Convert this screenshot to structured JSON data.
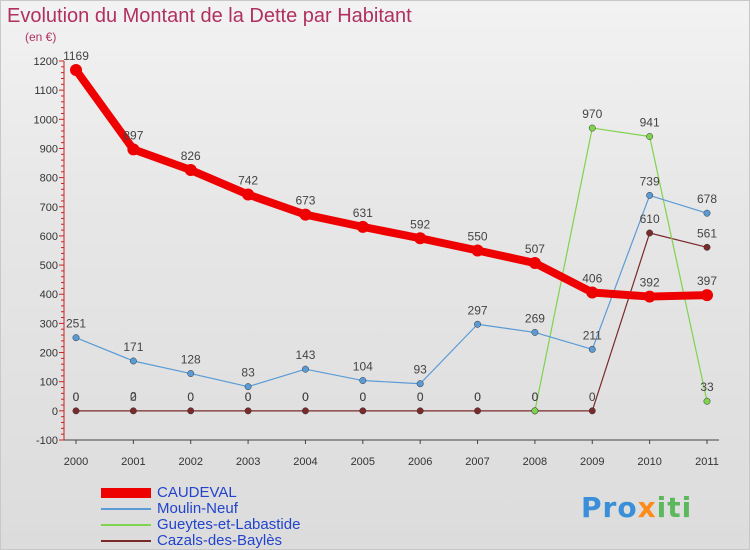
{
  "title": "Evolution du Montant de la Dette par Habitant",
  "unit": "(en €)",
  "brand": {
    "part1": "Pro",
    "part2": "x",
    "part3": "iti"
  },
  "chart_data": {
    "type": "line",
    "title": "Evolution du Montant de la Dette par Habitant",
    "ylabel": "(en €)",
    "x": [
      "2000",
      "2001",
      "2002",
      "2003",
      "2004",
      "2005",
      "2006",
      "2007",
      "2008",
      "2009",
      "2010",
      "2011"
    ],
    "ylim": [
      -100,
      1200
    ],
    "yticks": [
      -100,
      0,
      100,
      200,
      300,
      400,
      500,
      600,
      700,
      800,
      900,
      1000,
      1100,
      1200
    ],
    "grid": false,
    "legend": "bottom-left",
    "series": [
      {
        "name": "CAUDEVAL",
        "color": "#ee0000",
        "values": [
          1169,
          897,
          826,
          742,
          673,
          631,
          592,
          550,
          507,
          406,
          392,
          397
        ]
      },
      {
        "name": "Moulin-Neuf",
        "color": "#5b9bd5",
        "values": [
          251,
          171,
          128,
          83,
          143,
          104,
          93,
          297,
          269,
          211,
          739,
          678
        ]
      },
      {
        "name": "Gueytes-et-Labastide",
        "color": "#7fd34e",
        "values": [
          0,
          2,
          0,
          0,
          0,
          0,
          0,
          0,
          0,
          970,
          941,
          33
        ]
      },
      {
        "name": "Cazals-des-Baylès",
        "color": "#7a2a2a",
        "values": [
          0,
          0,
          0,
          0,
          0,
          0,
          0,
          0,
          0,
          0,
          610,
          561
        ]
      }
    ]
  }
}
